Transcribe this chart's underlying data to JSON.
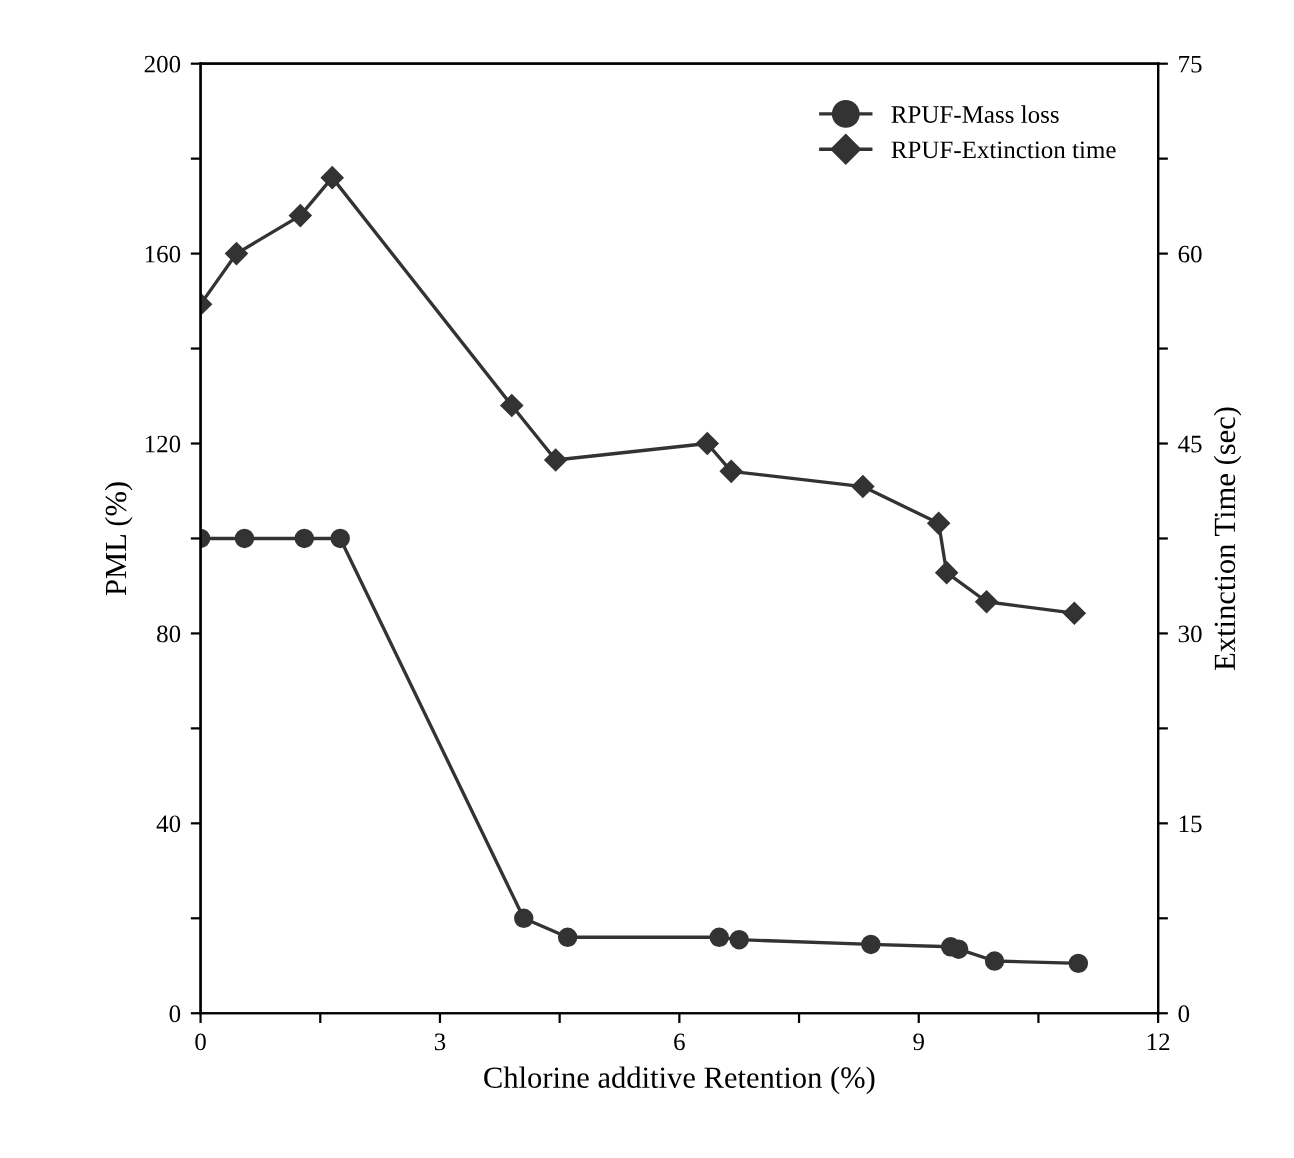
{
  "chart_data": {
    "type": "line",
    "xlabel": "Chlorine additive Retention (%)",
    "ylabel": "PML (%)",
    "y2label": "Extinction Time (sec)",
    "xlim": [
      0,
      12
    ],
    "xticks": [
      0,
      {
        "value": 1.5,
        "label": null
      },
      3,
      {
        "value": 4.5,
        "label": null
      },
      6,
      {
        "value": 7.5,
        "label": null
      },
      9,
      {
        "value": 10.5,
        "label": null
      },
      12
    ],
    "ylim": [
      0,
      200
    ],
    "yticks": [
      0,
      {
        "value": 20,
        "label": null
      },
      40,
      {
        "value": 60,
        "label": null
      },
      80,
      {
        "value": 100,
        "label": null
      },
      120,
      {
        "value": 140,
        "label": null
      },
      160,
      {
        "value": 180,
        "label": null
      },
      200
    ],
    "y2lim": [
      0,
      75
    ],
    "y2ticks": [
      0,
      {
        "value": 7.5,
        "label": null
      },
      15,
      {
        "value": 22.5,
        "label": null
      },
      30,
      {
        "value": 37.5,
        "label": null
      },
      45,
      {
        "value": 52.5,
        "label": null
      },
      60,
      {
        "value": 67.5,
        "label": null
      },
      75
    ],
    "legend": "top right",
    "grid": false,
    "series": [
      {
        "name": "RPUF-Mass loss",
        "color": "#333333",
        "marker": "circle",
        "x": [
          0,
          0.55,
          1.3,
          1.75,
          4.05,
          4.6,
          6.5,
          6.75,
          8.4,
          9.4,
          9.5,
          9.95,
          11.0
        ],
        "values": [
          100,
          100,
          100,
          100,
          20,
          16,
          16,
          15.5,
          14.5,
          14,
          13.5,
          11,
          10.5
        ]
      },
      {
        "name": "RPUF-Extinction time",
        "color": "#333333",
        "marker": "diamond",
        "axis": "y2",
        "x": [
          0,
          0.45,
          1.25,
          1.65,
          3.9,
          4.45,
          6.35,
          6.65,
          8.3,
          9.25,
          9.35,
          9.85,
          10.95
        ],
        "values": [
          56,
          60,
          63,
          66,
          48,
          43.7,
          45,
          42.8,
          41.6,
          38.7,
          34.8,
          32.5,
          31.6
        ]
      }
    ]
  }
}
